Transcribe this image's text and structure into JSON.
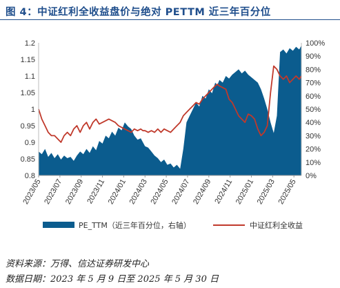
{
  "title": "图 4：中证红利全收益盘价与绝对 PETTM 近三年百分位",
  "source": "资料来源：万得、信达证券研发中心",
  "date_range": "数据日期：2023 年 5 月 9 日至 2025 年 5 月 30 日",
  "colors": {
    "area": "#0b5c8e",
    "line": "#c0392b",
    "title": "#1f4e8c"
  },
  "chart_data": {
    "type": "area+line",
    "x_ticks": [
      "2023/05",
      "2023/07",
      "2023/09",
      "2023/11",
      "2024/01",
      "2024/03",
      "2024/05",
      "2024/07",
      "2024/09",
      "2024/11",
      "2025/01",
      "2025/03",
      "2025/05"
    ],
    "left_axis": {
      "ticks": [
        "0.8",
        "0.85",
        "0.9",
        "0.95",
        "1",
        "1.05",
        "1.1",
        "1.15",
        "1.2"
      ],
      "range": [
        0.8,
        1.2
      ]
    },
    "right_axis": {
      "ticks": [
        "0%",
        "10%",
        "20%",
        "30%",
        "40%",
        "50%",
        "60%",
        "70%",
        "80%",
        "90%",
        "100%"
      ],
      "range": [
        0,
        100
      ]
    },
    "legend": [
      "PE_TTM（近三年百分位，右轴）",
      "中证红利全收益"
    ],
    "series": [
      {
        "name": "PE_TTM（近三年百分位，右轴）",
        "axis": "right",
        "kind": "area",
        "x_month": [
          0,
          0.3,
          0.6,
          0.9,
          1.2,
          1.5,
          1.8,
          2.1,
          2.4,
          2.7,
          3.0,
          3.3,
          3.6,
          3.9,
          4.2,
          4.5,
          4.8,
          5.1,
          5.4,
          5.7,
          6.0,
          6.3,
          6.6,
          6.9,
          7.2,
          7.5,
          7.8,
          8.1,
          8.4,
          8.7,
          9.0,
          9.3,
          9.6,
          9.8,
          10.0,
          10.3,
          10.6,
          10.9,
          11.2,
          11.5,
          11.8,
          12.1,
          12.4,
          12.7,
          13.0,
          13.3,
          13.6,
          13.9,
          14.2,
          14.5,
          14.8,
          15.1,
          15.4,
          15.7,
          16.0,
          16.3,
          16.6,
          16.8,
          17.0,
          17.3,
          17.6,
          17.9,
          18.2,
          18.5,
          18.8,
          19.1,
          19.4,
          19.7,
          20.0,
          20.3,
          20.6,
          20.9,
          21.2,
          21.5,
          21.8,
          22.1,
          22.4,
          22.7,
          23.0,
          23.3,
          23.6,
          23.9,
          24.2,
          24.5,
          24.7
        ],
        "values": [
          18,
          16,
          20,
          14,
          17,
          13,
          16,
          12,
          15,
          13,
          14,
          11,
          15,
          18,
          16,
          20,
          17,
          22,
          19,
          26,
          24,
          30,
          28,
          33,
          30,
          36,
          34,
          40,
          37,
          35,
          30,
          27,
          28,
          25,
          22,
          21,
          18,
          15,
          13,
          10,
          12,
          8,
          9,
          6,
          8,
          5,
          20,
          40,
          45,
          50,
          55,
          52,
          60,
          58,
          65,
          62,
          70,
          68,
          72,
          70,
          75,
          73,
          76,
          78,
          80,
          77,
          79,
          76,
          74,
          72,
          70,
          65,
          58,
          50,
          40,
          32,
          45,
          93,
          95,
          92,
          96,
          94,
          97,
          95,
          98
        ]
      },
      {
        "name": "中证红利全收益",
        "axis": "left",
        "kind": "line",
        "x_month": [
          0,
          0.3,
          0.6,
          0.9,
          1.2,
          1.5,
          1.8,
          2.1,
          2.4,
          2.7,
          3.0,
          3.3,
          3.6,
          3.9,
          4.2,
          4.5,
          4.8,
          5.1,
          5.4,
          5.7,
          6.0,
          6.3,
          6.6,
          6.9,
          7.2,
          7.5,
          7.8,
          8.1,
          8.4,
          8.7,
          9.0,
          9.3,
          9.6,
          9.8,
          10.0,
          10.3,
          10.6,
          10.9,
          11.2,
          11.5,
          11.8,
          12.1,
          12.4,
          12.7,
          13.0,
          13.3,
          13.6,
          13.9,
          14.2,
          14.5,
          14.8,
          15.1,
          15.4,
          15.7,
          16.0,
          16.3,
          16.6,
          16.8,
          17.0,
          17.3,
          17.6,
          17.9,
          18.2,
          18.5,
          18.8,
          19.1,
          19.4,
          19.7,
          20.0,
          20.3,
          20.6,
          20.9,
          21.2,
          21.5,
          21.8,
          22.1,
          22.4,
          22.7,
          23.0,
          23.3,
          23.6,
          23.9,
          24.2,
          24.5,
          24.7
        ],
        "values": [
          1.0,
          0.97,
          0.95,
          0.93,
          0.92,
          0.92,
          0.91,
          0.9,
          0.92,
          0.93,
          0.92,
          0.94,
          0.95,
          0.93,
          0.95,
          0.96,
          0.94,
          0.96,
          0.97,
          0.955,
          0.96,
          0.965,
          0.97,
          0.965,
          0.96,
          0.95,
          0.945,
          0.94,
          0.935,
          0.93,
          0.94,
          0.935,
          0.94,
          0.935,
          0.935,
          0.93,
          0.935,
          0.93,
          0.94,
          0.93,
          0.94,
          0.935,
          0.93,
          0.94,
          0.95,
          0.96,
          0.98,
          0.99,
          1.0,
          1.01,
          1.02,
          1.015,
          1.03,
          1.04,
          1.05,
          1.06,
          1.07,
          1.075,
          1.07,
          1.065,
          1.06,
          1.03,
          1.02,
          1.0,
          0.98,
          0.97,
          0.96,
          0.985,
          0.98,
          0.97,
          0.94,
          0.92,
          0.93,
          0.95,
          1.05,
          1.13,
          1.12,
          1.1,
          1.09,
          1.1,
          1.08,
          1.09,
          1.1,
          1.09,
          1.1
        ]
      }
    ]
  }
}
